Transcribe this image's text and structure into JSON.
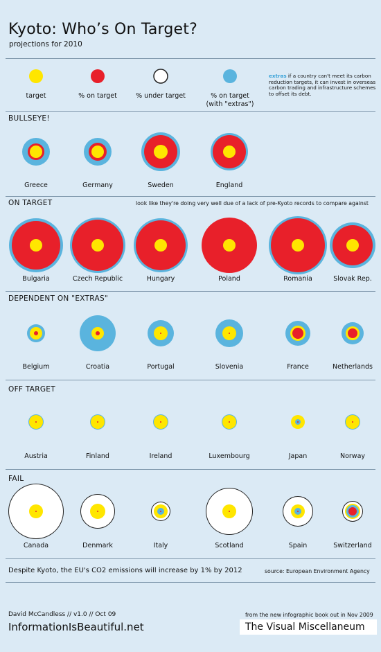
{
  "header": {
    "title": "Kyoto: Who’s On Target?",
    "subtitle": "projections for 2010"
  },
  "colors": {
    "target": "#ffe600",
    "on_target": "#e8202a",
    "under_target": "#ffffff",
    "extras": "#5ab4de",
    "ring": "#222222",
    "background": "#dbeaf5"
  },
  "legend": {
    "items": [
      {
        "label": "target",
        "color": "#ffe600"
      },
      {
        "label": "% on target",
        "color": "#e8202a"
      },
      {
        "label": "% under target",
        "color": "#ffffff"
      },
      {
        "label": "% on target\n(with \"extras\")",
        "color": "#5ab4de"
      }
    ],
    "extras_keyword": "extras",
    "extras_text": "if a country can't meet its carbon reduction targets, it can invest in overseas carbon trading and infrastructure schemes to offset its debt."
  },
  "sections": [
    {
      "title": "BULLSEYE!",
      "note": "",
      "countries": [
        {
          "name": "Greece",
          "layers": [
            [
              "#5ab4de",
              20
            ],
            [
              "#e8202a",
              12
            ],
            [
              "#ffe600",
              9
            ]
          ]
        },
        {
          "name": "Germany",
          "layers": [
            [
              "#5ab4de",
              20
            ],
            [
              "#e8202a",
              13
            ],
            [
              "#ffe600",
              9
            ]
          ]
        },
        {
          "name": "Sweden",
          "layers": [
            [
              "#5ab4de",
              28
            ],
            [
              "#e8202a",
              24
            ],
            [
              "#ffe600",
              10
            ]
          ]
        },
        {
          "name": "England",
          "layers": [
            [
              "#5ab4de",
              27
            ],
            [
              "#e8202a",
              24
            ],
            [
              "#ffe600",
              9
            ]
          ]
        }
      ]
    },
    {
      "title": "ON TARGET",
      "note": "look like they're doing very well due of a lack of pre-Kyoto records to compare against",
      "countries": [
        {
          "name": "Bulgaria",
          "layers": [
            [
              "#5ab4de",
              39
            ],
            [
              "#e8202a",
              35
            ],
            [
              "#ffe600",
              9
            ]
          ]
        },
        {
          "name": "Czech Republic",
          "layers": [
            [
              "#5ab4de",
              40
            ],
            [
              "#e8202a",
              37
            ],
            [
              "#ffe600",
              9
            ]
          ]
        },
        {
          "name": "Hungary",
          "layers": [
            [
              "#5ab4de",
              39
            ],
            [
              "#e8202a",
              36
            ],
            [
              "#ffe600",
              9
            ]
          ]
        },
        {
          "name": "Poland",
          "layers": [
            [
              "#e8202a",
              40
            ],
            [
              "#ffe600",
              9
            ]
          ]
        },
        {
          "name": "Romania",
          "layers": [
            [
              "#5ab4de",
              42
            ],
            [
              "#e8202a",
              39
            ],
            [
              "#ffe600",
              9
            ]
          ]
        },
        {
          "name": "Slovak Rep.",
          "layers": [
            [
              "#5ab4de",
              33
            ],
            [
              "#e8202a",
              29
            ],
            [
              "#ffe600",
              9
            ]
          ]
        }
      ]
    },
    {
      "title": "DEPENDENT ON \"EXTRAS\"",
      "note": "",
      "countries": [
        {
          "name": "Belgium",
          "layers": [
            [
              "#5ab4de",
              13
            ],
            [
              "#ffe600",
              9
            ],
            [
              "#e8202a",
              3
            ]
          ]
        },
        {
          "name": "Croatia",
          "layers": [
            [
              "#5ab4de",
              26
            ],
            [
              "#ffe600",
              9
            ],
            [
              "#e8202a",
              3
            ]
          ]
        },
        {
          "name": "Portugal",
          "layers": [
            [
              "#5ab4de",
              19
            ],
            [
              "#ffe600",
              10
            ],
            [
              "#e8202a",
              1
            ]
          ]
        },
        {
          "name": "Slovenia",
          "layers": [
            [
              "#5ab4de",
              20
            ],
            [
              "#ffe600",
              10
            ],
            [
              "#e8202a",
              1
            ]
          ]
        },
        {
          "name": "France",
          "layers": [
            [
              "#5ab4de",
              18
            ],
            [
              "#ffe600",
              11
            ],
            [
              "#e8202a",
              8
            ]
          ]
        },
        {
          "name": "Netherlands",
          "layers": [
            [
              "#5ab4de",
              16
            ],
            [
              "#ffe600",
              10
            ],
            [
              "#e8202a",
              7
            ]
          ]
        }
      ]
    },
    {
      "title": "OFF TARGET",
      "note": "",
      "countries": [
        {
          "name": "Austria",
          "layers": [
            [
              "#5ab4de",
              11
            ],
            [
              "#ffe600",
              10
            ],
            [
              "#e8202a",
              1
            ]
          ]
        },
        {
          "name": "Finland",
          "layers": [
            [
              "#5ab4de",
              11
            ],
            [
              "#ffe600",
              10
            ],
            [
              "#e8202a",
              1
            ]
          ]
        },
        {
          "name": "Ireland",
          "layers": [
            [
              "#5ab4de",
              11
            ],
            [
              "#ffe600",
              10
            ],
            [
              "#e8202a",
              1
            ]
          ]
        },
        {
          "name": "Luxembourg",
          "layers": [
            [
              "#5ab4de",
              11
            ],
            [
              "#ffe600",
              10
            ],
            [
              "#e8202a",
              1
            ]
          ]
        },
        {
          "name": "Japan",
          "layers": [
            [
              "#ffe600",
              10
            ],
            [
              "#5ab4de",
              4
            ],
            [
              "#e8202a",
              1
            ]
          ]
        },
        {
          "name": "Norway",
          "layers": [
            [
              "#5ab4de",
              11
            ],
            [
              "#ffe600",
              10
            ],
            [
              "#e8202a",
              1
            ]
          ]
        }
      ]
    },
    {
      "title": "FAIL",
      "note": "",
      "countries": [
        {
          "name": "Canada",
          "layers": [
            [
              "#222222",
              40
            ],
            [
              "#ffffff",
              39
            ],
            [
              "#ffe600",
              10
            ],
            [
              "#e8202a",
              1
            ]
          ]
        },
        {
          "name": "Denmark",
          "layers": [
            [
              "#222222",
              25
            ],
            [
              "#ffffff",
              24
            ],
            [
              "#ffe600",
              11
            ],
            [
              "#e8202a",
              1
            ]
          ]
        },
        {
          "name": "Italy",
          "layers": [
            [
              "#222222",
              14
            ],
            [
              "#ffffff",
              13
            ],
            [
              "#ffe600",
              10
            ],
            [
              "#5ab4de",
              5
            ],
            [
              "#e8202a",
              1
            ]
          ]
        },
        {
          "name": "Scotland",
          "layers": [
            [
              "#222222",
              34
            ],
            [
              "#ffffff",
              33
            ],
            [
              "#ffe600",
              10
            ],
            [
              "#e8202a",
              1
            ]
          ]
        },
        {
          "name": "Spain",
          "layers": [
            [
              "#222222",
              22
            ],
            [
              "#ffffff",
              21
            ],
            [
              "#ffe600",
              10
            ],
            [
              "#5ab4de",
              5
            ],
            [
              "#e8202a",
              1
            ]
          ]
        },
        {
          "name": "Switzerland",
          "layers": [
            [
              "#222222",
              15
            ],
            [
              "#ffffff",
              14
            ],
            [
              "#ffe600",
              11
            ],
            [
              "#5ab4de",
              9
            ],
            [
              "#e8202a",
              6
            ]
          ]
        }
      ]
    }
  ],
  "footer": {
    "summary": "Despite Kyoto, the EU's CO2 emissions will increase by 1% by 2012",
    "source": "source: European Environment Agency",
    "author": "David McCandless // v1.0 // Oct 09",
    "site": "InformationIsBeautiful.net",
    "book_note": "from the new infographic book out in Nov 2009",
    "book_title": "The Visual Miscellaneum"
  }
}
